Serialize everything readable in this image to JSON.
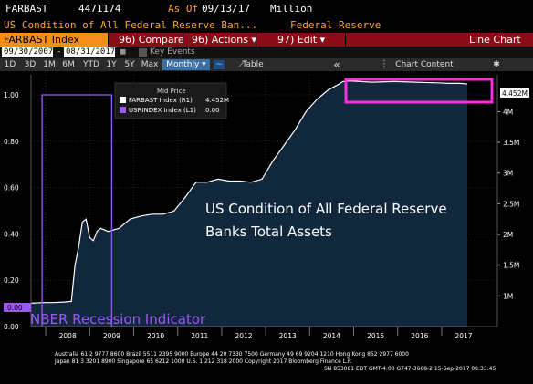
{
  "header": {
    "ticker": "FARBAST",
    "id": "4471174",
    "as_of_label": "As Of",
    "as_of_date": "09/13/17",
    "unit": "Million",
    "description": "US Condition of All Federal Reserve Ban...",
    "source": "Federal Reserve"
  },
  "menubar": {
    "index_label": "FARBAST Index",
    "compare": "96) Compare",
    "actions": "96) Actions ▾",
    "edit": "97) Edit ▾",
    "chart_type": "Line Chart"
  },
  "dates": {
    "start": "09/30/2007",
    "end": "08/31/2017",
    "key_events": "Key Events"
  },
  "toolbar": {
    "ranges": [
      "1D",
      "3D",
      "1M",
      "6M",
      "YTD",
      "1Y",
      "5Y",
      "Max"
    ],
    "frequency": "Monthly ▾",
    "table": "Table",
    "collapse": "«",
    "chart_content": "Chart Content",
    "settings_glyph": "✱"
  },
  "colors": {
    "accent_orange": "#f58d1b",
    "menu_red": "#8b0b17",
    "series_white": "#ffffff",
    "recession_purple": "#9b59f0",
    "highlight_magenta": "#ff2bdc",
    "area_fill": "#11273c"
  },
  "footer": {
    "line1": "Australia 61 2 9777 8600 Brazil 5511 2395 9000 Europe 44 20 7330 7500 Germany 49 69 9204 1210 Hong Kong 852 2977 6000",
    "line2": "Japan 81 3 3201 8900        Singapore 65 6212 1000        U.S. 1 212 318 2000        Copyright 2017 Bloomberg Finance L.P.",
    "line3": "SN 853081 EDT  GMT-4:00 G747-3668-2 15-Sep-2017 08:33:45"
  },
  "chart_data": {
    "type": "line",
    "legend_title": "Mid Price",
    "series": [
      {
        "name": "FARBAST Index  (R1)",
        "last_value_label": "4.452M",
        "axis": "right",
        "color": "#ffffff",
        "x": [
          "2007-09",
          "2007-12",
          "2008-03",
          "2008-06",
          "2008-08",
          "2008-09",
          "2008-10",
          "2008-11",
          "2008-12",
          "2009-01",
          "2009-02",
          "2009-03",
          "2009-04",
          "2009-06",
          "2009-09",
          "2009-12",
          "2010-03",
          "2010-06",
          "2010-09",
          "2010-12",
          "2011-03",
          "2011-06",
          "2011-09",
          "2011-12",
          "2012-03",
          "2012-06",
          "2012-09",
          "2012-12",
          "2013-03",
          "2013-06",
          "2013-09",
          "2013-12",
          "2014-03",
          "2014-06",
          "2014-09",
          "2014-10",
          "2014-12",
          "2015-06",
          "2015-12",
          "2016-06",
          "2016-12",
          "2017-03",
          "2017-06",
          "2017-08"
        ],
        "values": [
          0.88,
          0.89,
          0.89,
          0.9,
          0.91,
          1.5,
          1.8,
          2.2,
          2.25,
          1.95,
          1.9,
          2.05,
          2.1,
          2.05,
          2.1,
          2.25,
          2.3,
          2.33,
          2.33,
          2.38,
          2.6,
          2.85,
          2.85,
          2.9,
          2.87,
          2.87,
          2.85,
          2.9,
          3.2,
          3.45,
          3.7,
          4.0,
          4.2,
          4.35,
          4.45,
          4.49,
          4.5,
          4.48,
          4.49,
          4.48,
          4.47,
          4.46,
          4.46,
          4.452
        ]
      },
      {
        "name": "USRINDEX Index  (L1)",
        "last_value_label": "0.00",
        "axis": "left",
        "color": "#9b59f0",
        "x": [
          "2007-09",
          "2007-12",
          "2009-06",
          "2009-07",
          "2017-08"
        ],
        "values": [
          0,
          1,
          1,
          0,
          0
        ]
      }
    ],
    "annotation_title": "US Condition of All Federal Reserve",
    "annotation_title_2": "Banks Total Assets",
    "recession_label": "NBER Recession Indicator",
    "left_axis": {
      "ylim": [
        0,
        1.0
      ],
      "ticks": [
        "0.00",
        "0.20",
        "0.40",
        "0.60",
        "0.80",
        "1.00"
      ]
    },
    "right_axis": {
      "ylim": [
        0.5,
        4.6
      ],
      "ticks": [
        "1M",
        "1.5M",
        "2M",
        "2.5M",
        "3M",
        "3.5M",
        "4M"
      ]
    },
    "x_axis": {
      "ticks": [
        "2008",
        "2009",
        "2010",
        "2011",
        "2012",
        "2013",
        "2014",
        "2015",
        "2016",
        "2017"
      ]
    },
    "left_last_label": "0.00",
    "right_last_label": "4.452M",
    "grid": true
  }
}
